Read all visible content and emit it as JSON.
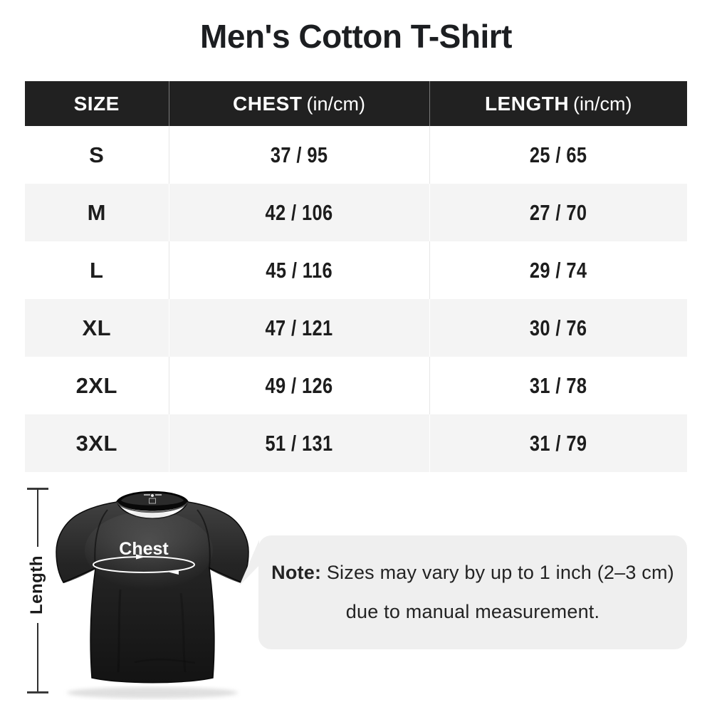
{
  "page": {
    "title": "Men's Cotton T-Shirt",
    "background": "#ffffff"
  },
  "table": {
    "columns": [
      {
        "label": "SIZE",
        "unit": ""
      },
      {
        "label": "CHEST",
        "unit": "(in/cm)"
      },
      {
        "label": "LENGTH",
        "unit": "(in/cm)"
      }
    ],
    "rows": [
      {
        "size": "S",
        "chest": "37 / 95",
        "length": "25 / 65"
      },
      {
        "size": "M",
        "chest": "42 / 106",
        "length": "27 / 70"
      },
      {
        "size": "L",
        "chest": "45 / 116",
        "length": "29 / 74"
      },
      {
        "size": "XL",
        "chest": "47 / 121",
        "length": "30 / 76"
      },
      {
        "size": "2XL",
        "chest": "49 / 126",
        "length": "31 / 78"
      },
      {
        "size": "3XL",
        "chest": "51 / 131",
        "length": "31 / 79"
      }
    ],
    "colors": {
      "header_bg": "#212121",
      "header_text": "#ffffff",
      "row_bg": "#ffffff",
      "row_alt_bg": "#f4f4f4"
    }
  },
  "diagram": {
    "chest_label": "Chest",
    "length_label": "Length",
    "shirt_color": "#1e1e1e",
    "annotation_color": "#ffffff"
  },
  "note": {
    "label": "Note:",
    "line1": "Sizes may vary by up to 1 inch (2–3 cm)",
    "line2": "due to manual measurement.",
    "bubble_color": "#efefef"
  }
}
